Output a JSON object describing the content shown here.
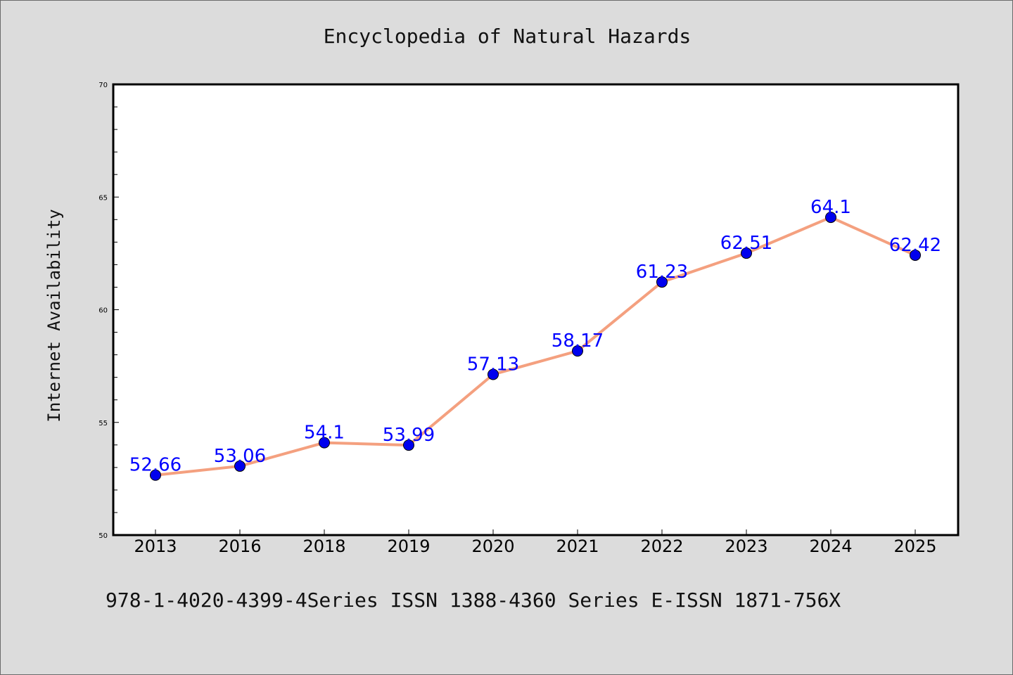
{
  "chart_data": {
    "type": "line",
    "title": "Encyclopedia of Natural Hazards",
    "ylabel": "Internet Availability",
    "xlabel": "",
    "caption": "978-1-4020-4399-4Series ISSN 1388-4360 Series E-ISSN 1871-756X",
    "categories": [
      "2013",
      "2016",
      "2018",
      "2019",
      "2020",
      "2021",
      "2022",
      "2023",
      "2024",
      "2025"
    ],
    "values": [
      52.66,
      53.06,
      54.1,
      53.99,
      57.13,
      58.17,
      61.23,
      62.51,
      64.1,
      62.42
    ],
    "data_labels": [
      "52.66",
      "53.06",
      "54.1",
      "53.99",
      "57.13",
      "58.17",
      "61.23",
      "62.51",
      "64.1",
      "62.42"
    ],
    "ylim": [
      50,
      70
    ],
    "yticks": [
      "50",
      "55",
      "60",
      "65",
      "70"
    ],
    "line_color": "#f4a07f",
    "marker_color": "#0000ee",
    "label_color": "#0000ff",
    "grid": false,
    "legend": "none"
  }
}
